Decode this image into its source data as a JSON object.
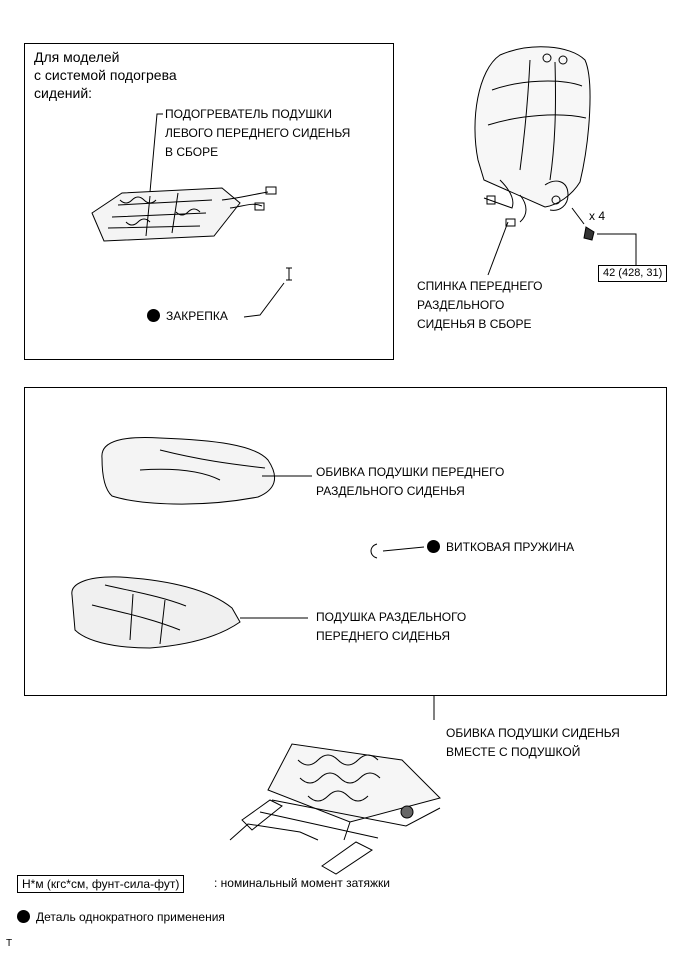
{
  "heater_box": {
    "title_lines": [
      "Для моделей",
      "с системой подогрева",
      "сидений:"
    ],
    "heater_label_lines": [
      "ПОДОГРЕВАТЕЛЬ ПОДУШКИ",
      "ЛЕВОГО ПЕРЕДНЕГО СИДЕНЬЯ",
      "В СБОРЕ"
    ],
    "clip_label": "ЗАКРЕПКА"
  },
  "seatback": {
    "qty": "x 4",
    "torque": "42 (428, 31)",
    "label_lines": [
      "СПИНКА ПЕРЕДНЕГО",
      "РАЗДЕЛЬНОГО",
      "СИДЕНЬЯ В СБОРЕ"
    ]
  },
  "cushion_box": {
    "cover_label_lines": [
      "ОБИВКА ПОДУШКИ ПЕРЕДНЕГО",
      "РАЗДЕЛЬНОГО СИДЕНЬЯ"
    ],
    "spring_label": "ВИТКОВАЯ ПРУЖИНА",
    "pad_label_lines": [
      "ПОДУШКА РАЗДЕЛЬНОГО",
      "ПЕРЕДНЕГО СИДЕНЬЯ"
    ]
  },
  "assembly_label_lines": [
    "ОБИВКА ПОДУШКИ СИДЕНЬЯ",
    "ВМЕСТЕ С ПОДУШКОЙ"
  ],
  "legend": {
    "torque_unit": "Н*м (кгс*см, фунт-сила-фут)",
    "torque_desc": ": номинальный момент затяжки",
    "non_reusable": "Деталь однократного применения"
  },
  "corner_mark": "T"
}
